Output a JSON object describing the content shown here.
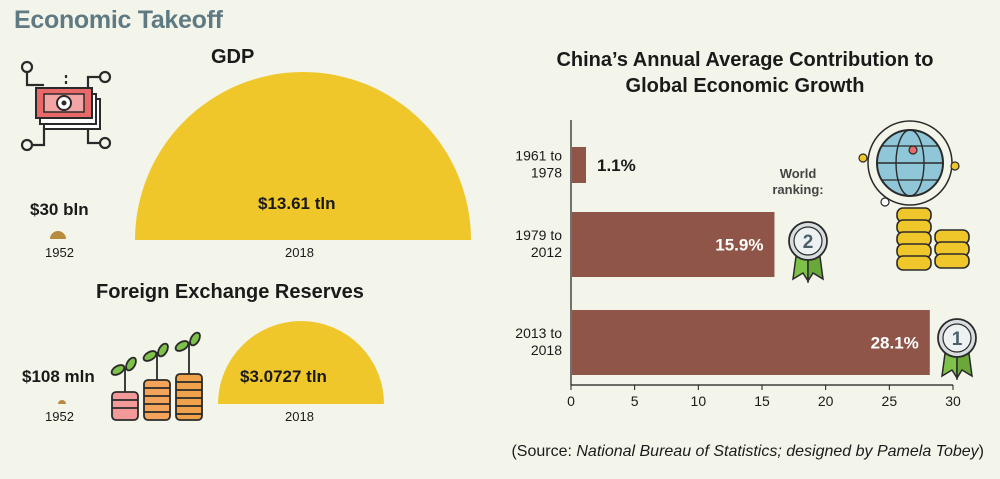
{
  "page_title": "Economic Takeoff",
  "gdp": {
    "title": "GDP",
    "small_value": "$30 bln",
    "small_year": "1952",
    "big_value": "$13.61 tln",
    "big_year": "2018"
  },
  "reserves": {
    "title": "Foreign Exchange Reserves",
    "small_value": "$108 mln",
    "small_year": "1952",
    "big_value": "$3.0727 tln",
    "big_year": "2018"
  },
  "ranking_label": [
    "World",
    "ranking:"
  ],
  "medals": [
    "2",
    "1"
  ],
  "source": {
    "prefix": "(Source: ",
    "italic": "National Bureau of Statistics; designed by Pamela Tobey",
    "suffix": ")"
  },
  "colors": {
    "gold": "#f0c72b",
    "brown": "#8f5548",
    "title_teal": "#5f7a82",
    "bg": "#f4f5ea"
  },
  "chart_data": {
    "type": "bar",
    "orientation": "horizontal",
    "title": [
      "China’s Annual Average Contribution to",
      "Global Economic Growth"
    ],
    "categories": [
      [
        "1961 to",
        "1978"
      ],
      [
        "1979 to",
        "2012"
      ],
      [
        "2013 to",
        "2018"
      ]
    ],
    "values": [
      1.1,
      15.9,
      28.1
    ],
    "labels": [
      "1.1%",
      "15.9%",
      "28.1%"
    ],
    "xlim": [
      0,
      30
    ],
    "xticks": [
      0,
      5,
      10,
      15,
      20,
      25,
      30
    ],
    "grid": false
  }
}
